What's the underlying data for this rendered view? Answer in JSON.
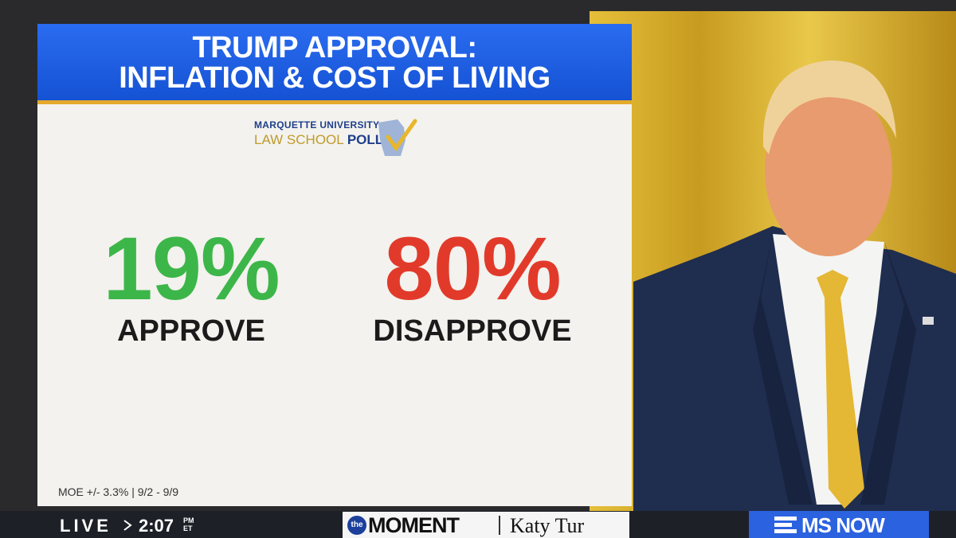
{
  "header": {
    "title_lines": [
      "TRUMP APPROVAL:",
      "INFLATION & COST OF LIVING"
    ]
  },
  "logo": {
    "line1": "MARQUETTE UNIVERSITY",
    "line2a": "LAW SCHOOL",
    "line2b": "POLL"
  },
  "results": [
    {
      "value": "19%",
      "label": "APPROVE"
    },
    {
      "value": "80%",
      "label": "DISAPPROVE"
    }
  ],
  "footnote": "MOE +/- 3.3% | 9/2 - 9/9",
  "ticker": {
    "live": "LIVE",
    "time": "2:07",
    "ampm": "PM",
    "zone": "ET",
    "show_prefix": "the",
    "show": "MOMENT",
    "host": "Katy Tur",
    "network": "MS NOW"
  }
}
